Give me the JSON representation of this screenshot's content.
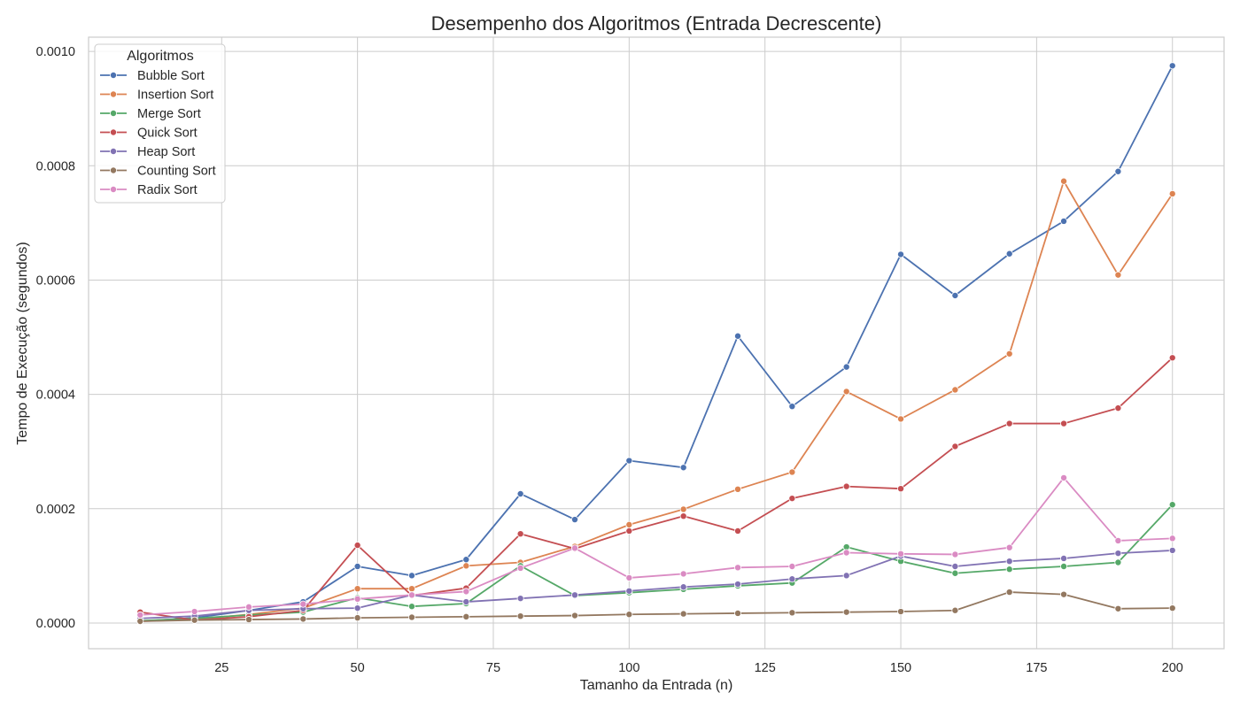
{
  "chart_data": {
    "type": "line",
    "title": "Desempenho dos Algoritmos (Entrada Decrescente)",
    "xlabel": "Tamanho da Entrada (n)",
    "ylabel": "Tempo de Execução (segundos)",
    "xlim": [
      0.5,
      209.5
    ],
    "ylim": [
      -4.5e-05,
      0.001025
    ],
    "xticks": [
      25,
      50,
      75,
      100,
      125,
      150,
      175,
      200
    ],
    "xtick_labels": [
      "25",
      "50",
      "75",
      "100",
      "125",
      "150",
      "175",
      "200"
    ],
    "yticks": [
      0,
      0.0002,
      0.0004,
      0.0006,
      0.0008,
      0.001
    ],
    "ytick_labels": [
      "0.0000",
      "0.0002",
      "0.0004",
      "0.0006",
      "0.0008",
      "0.0010"
    ],
    "grid": true,
    "legend": {
      "title": "Algoritmos",
      "placement": "top-left"
    },
    "x": [
      10,
      20,
      30,
      40,
      50,
      60,
      70,
      80,
      90,
      100,
      110,
      120,
      130,
      140,
      150,
      160,
      170,
      180,
      190,
      200
    ],
    "series": [
      {
        "name": "Bubble Sort",
        "color": "#4C72B0",
        "values": [
          3e-06,
          9e-06,
          2.2e-05,
          3.7e-05,
          9.9e-05,
          8.3e-05,
          0.000111,
          0.000226,
          0.000181,
          0.000284,
          0.000272,
          0.000502,
          0.000379,
          0.000448,
          0.000645,
          0.000573,
          0.000646,
          0.000703,
          0.00079,
          0.000975
        ]
      },
      {
        "name": "Insertion Sort",
        "color": "#DD8452",
        "values": [
          3e-06,
          6e-06,
          1.5e-05,
          2.6e-05,
          6e-05,
          6e-05,
          0.0001,
          0.000106,
          0.000134,
          0.000172,
          0.000199,
          0.000234,
          0.000264,
          0.000405,
          0.000357,
          0.000408,
          0.000471,
          0.000773,
          0.000609,
          0.000751
        ]
      },
      {
        "name": "Merge Sort",
        "color": "#55A868",
        "values": [
          4e-06,
          8e-06,
          1.4e-05,
          1.9e-05,
          4.4e-05,
          2.9e-05,
          3.4e-05,
          0.0001,
          4.8e-05,
          5.3e-05,
          5.9e-05,
          6.5e-05,
          7e-05,
          0.000133,
          0.000108,
          8.7e-05,
          9.4e-05,
          9.9e-05,
          0.000106,
          0.000207
        ]
      },
      {
        "name": "Quick Sort",
        "color": "#C44E52",
        "values": [
          1.9e-05,
          5e-06,
          1.1e-05,
          2.2e-05,
          0.000136,
          4.8e-05,
          6.1e-05,
          0.000156,
          0.00013,
          0.000161,
          0.000187,
          0.000161,
          0.000218,
          0.000239,
          0.000235,
          0.000309,
          0.000349,
          0.000349,
          0.000376,
          0.000464
        ]
      },
      {
        "name": "Heap Sort",
        "color": "#8172B3",
        "values": [
          8e-06,
          1.2e-05,
          2.2e-05,
          2.5e-05,
          2.6e-05,
          4.9e-05,
          3.7e-05,
          4.3e-05,
          4.9e-05,
          5.6e-05,
          6.3e-05,
          6.8e-05,
          7.7e-05,
          8.3e-05,
          0.000117,
          9.9e-05,
          0.000108,
          0.000113,
          0.000122,
          0.000127
        ]
      },
      {
        "name": "Counting Sort",
        "color": "#937860",
        "values": [
          3e-06,
          5e-06,
          6e-06,
          7e-06,
          9e-06,
          1e-05,
          1.1e-05,
          1.2e-05,
          1.3e-05,
          1.5e-05,
          1.6e-05,
          1.7e-05,
          1.8e-05,
          1.9e-05,
          2e-05,
          2.2e-05,
          5.4e-05,
          5e-05,
          2.5e-05,
          2.6e-05
        ]
      },
      {
        "name": "Radix Sort",
        "color": "#DA8BC3",
        "values": [
          1.4e-05,
          2e-05,
          2.8e-05,
          3.3e-05,
          4.2e-05,
          4.9e-05,
          5.5e-05,
          9.6e-05,
          0.000131,
          7.9e-05,
          8.6e-05,
          9.7e-05,
          9.9e-05,
          0.000123,
          0.000121,
          0.00012,
          0.000132,
          0.000254,
          0.000144,
          0.000148
        ]
      }
    ]
  }
}
